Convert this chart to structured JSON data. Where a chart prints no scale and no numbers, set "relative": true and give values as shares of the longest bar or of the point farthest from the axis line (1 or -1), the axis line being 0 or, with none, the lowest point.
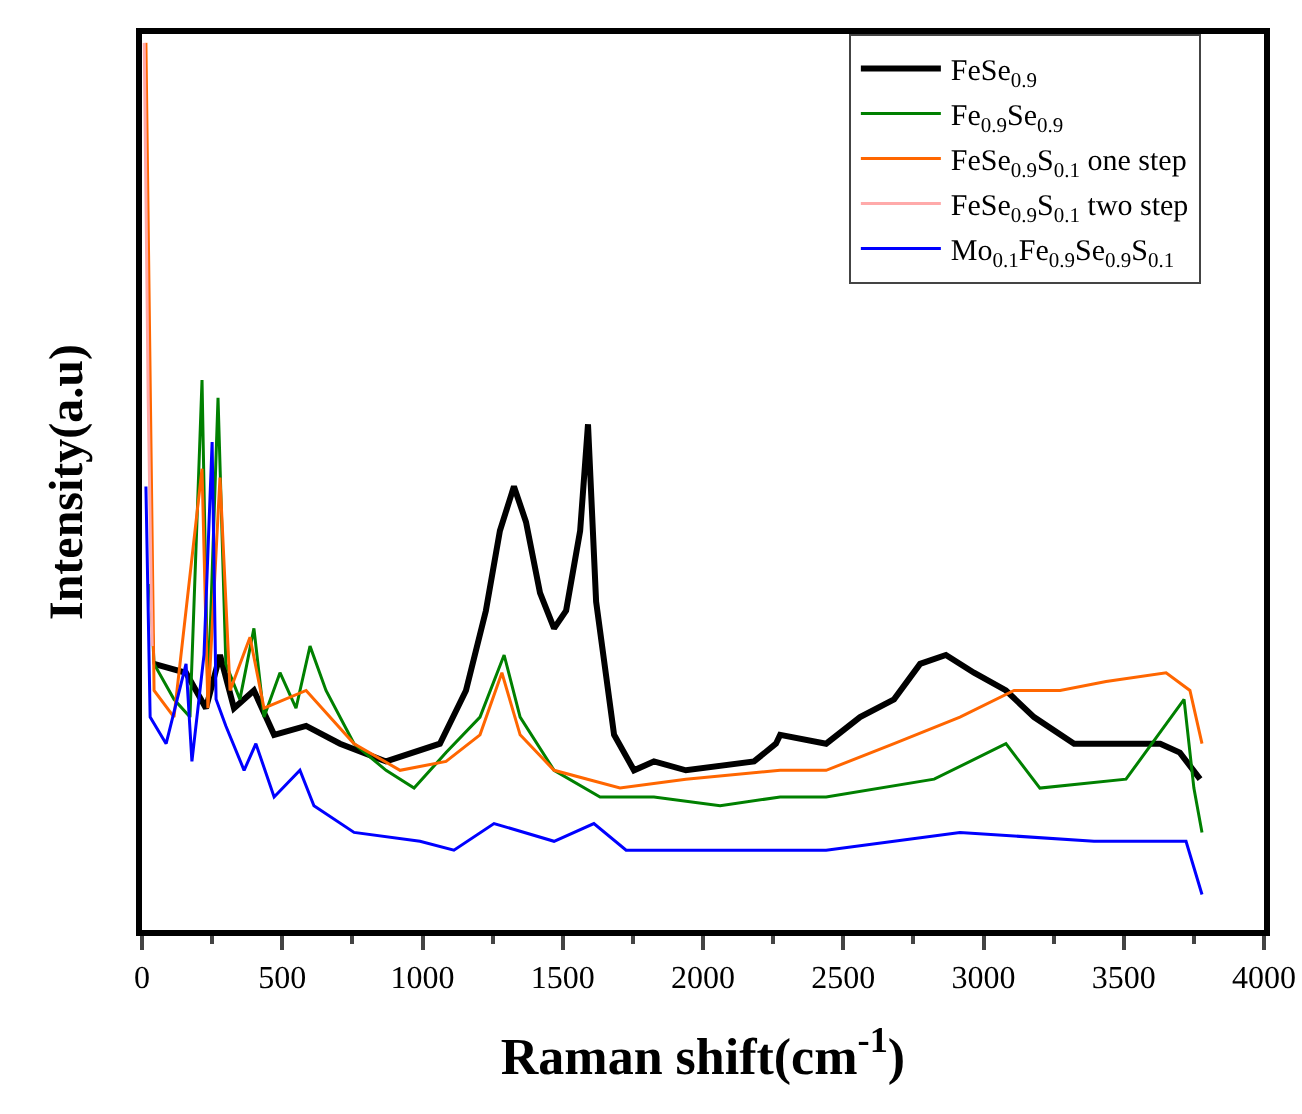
{
  "chart_data": {
    "type": "line",
    "relative": true,
    "xlabel": "Raman shift(cm$^{-1}$)",
    "ylabel": "Intensity(a.u)",
    "xlim": [
      0,
      4000
    ],
    "xticks": [
      0,
      500,
      1000,
      1500,
      2000,
      2500,
      3000,
      3500,
      4000
    ],
    "grid": false,
    "legend": "top right",
    "marker": "none",
    "line_style": "solid",
    "series": [
      {
        "name": "FeSe$_{0.9}$",
        "color": "#000000",
        "x": [
          43,
          157,
          228,
          278,
          328,
          399,
          471,
          585,
          706,
          870,
          1062,
          1155,
          1226,
          1276,
          1326,
          1369,
          1419,
          1469,
          1512,
          1562,
          1590,
          1619,
          1683,
          1754,
          1825,
          1939,
          2182,
          2260,
          2275,
          2439,
          2560,
          2681,
          2774,
          2866,
          2966,
          3080,
          3180,
          3323,
          3465,
          3630,
          3700,
          3772
        ],
        "values": [
          0.3,
          0.29,
          0.25,
          0.31,
          0.25,
          0.27,
          0.22,
          0.23,
          0.21,
          0.19,
          0.21,
          0.27,
          0.36,
          0.45,
          0.5,
          0.46,
          0.38,
          0.34,
          0.36,
          0.45,
          0.57,
          0.37,
          0.22,
          0.18,
          0.19,
          0.18,
          0.19,
          0.21,
          0.22,
          0.21,
          0.24,
          0.26,
          0.3,
          0.31,
          0.29,
          0.27,
          0.24,
          0.21,
          0.21,
          0.21,
          0.2,
          0.17
        ]
      },
      {
        "name": "Fe$_{0.9}$Se$_{0.9}$",
        "color": "#008000",
        "x": [
          29,
          43,
          114,
          171,
          214,
          235,
          271,
          299,
          349,
          399,
          435,
          492,
          549,
          599,
          656,
          756,
          870,
          970,
          1084,
          1205,
          1291,
          1348,
          1469,
          1633,
          1825,
          2061,
          2275,
          2439,
          2824,
          3080,
          3201,
          3508,
          3715,
          3750,
          3779
        ],
        "values": [
          0.39,
          0.3,
          0.26,
          0.24,
          0.62,
          0.26,
          0.6,
          0.3,
          0.26,
          0.34,
          0.24,
          0.29,
          0.25,
          0.32,
          0.27,
          0.21,
          0.18,
          0.16,
          0.2,
          0.24,
          0.31,
          0.24,
          0.18,
          0.15,
          0.15,
          0.14,
          0.15,
          0.15,
          0.17,
          0.21,
          0.16,
          0.17,
          0.26,
          0.16,
          0.11
        ]
      },
      {
        "name": "FeSe$_{0.9}$S$_{0.1}$ one step",
        "color": "#ff6600",
        "x": [
          14,
          43,
          114,
          214,
          235,
          278,
          314,
          385,
          435,
          585,
          756,
          920,
          1084,
          1205,
          1283,
          1348,
          1469,
          1704,
          1939,
          2275,
          2439,
          2681,
          2916,
          3109,
          3273,
          3437,
          3651,
          3736,
          3779
        ],
        "values": [
          1.0,
          0.27,
          0.24,
          0.52,
          0.25,
          0.51,
          0.27,
          0.33,
          0.25,
          0.27,
          0.21,
          0.18,
          0.19,
          0.22,
          0.29,
          0.22,
          0.18,
          0.16,
          0.17,
          0.18,
          0.18,
          0.21,
          0.24,
          0.27,
          0.27,
          0.28,
          0.29,
          0.27,
          0.21
        ]
      },
      {
        "name": "FeSe$_{0.9}$S$_{0.1}$ two step",
        "color": "#ffaaaa",
        "x": [
          8,
          22,
          36
        ],
        "values": [
          1.0,
          0.6,
          0.32
        ]
      },
      {
        "name": "Mo$_{0.1}$Fe$_{0.9}$Se$_{0.9}$S$_{0.1}$",
        "color": "#0000ff",
        "x": [
          14,
          29,
          86,
          157,
          178,
          221,
          250,
          264,
          299,
          364,
          406,
          471,
          563,
          613,
          756,
          991,
          1112,
          1255,
          1469,
          1611,
          1726,
          2061,
          2439,
          2916,
          3394,
          3722,
          3779
        ],
        "values": [
          0.5,
          0.24,
          0.21,
          0.3,
          0.19,
          0.31,
          0.55,
          0.26,
          0.23,
          0.18,
          0.21,
          0.15,
          0.18,
          0.14,
          0.11,
          0.1,
          0.09,
          0.12,
          0.1,
          0.12,
          0.09,
          0.09,
          0.09,
          0.11,
          0.1,
          0.1,
          0.04
        ]
      }
    ]
  }
}
